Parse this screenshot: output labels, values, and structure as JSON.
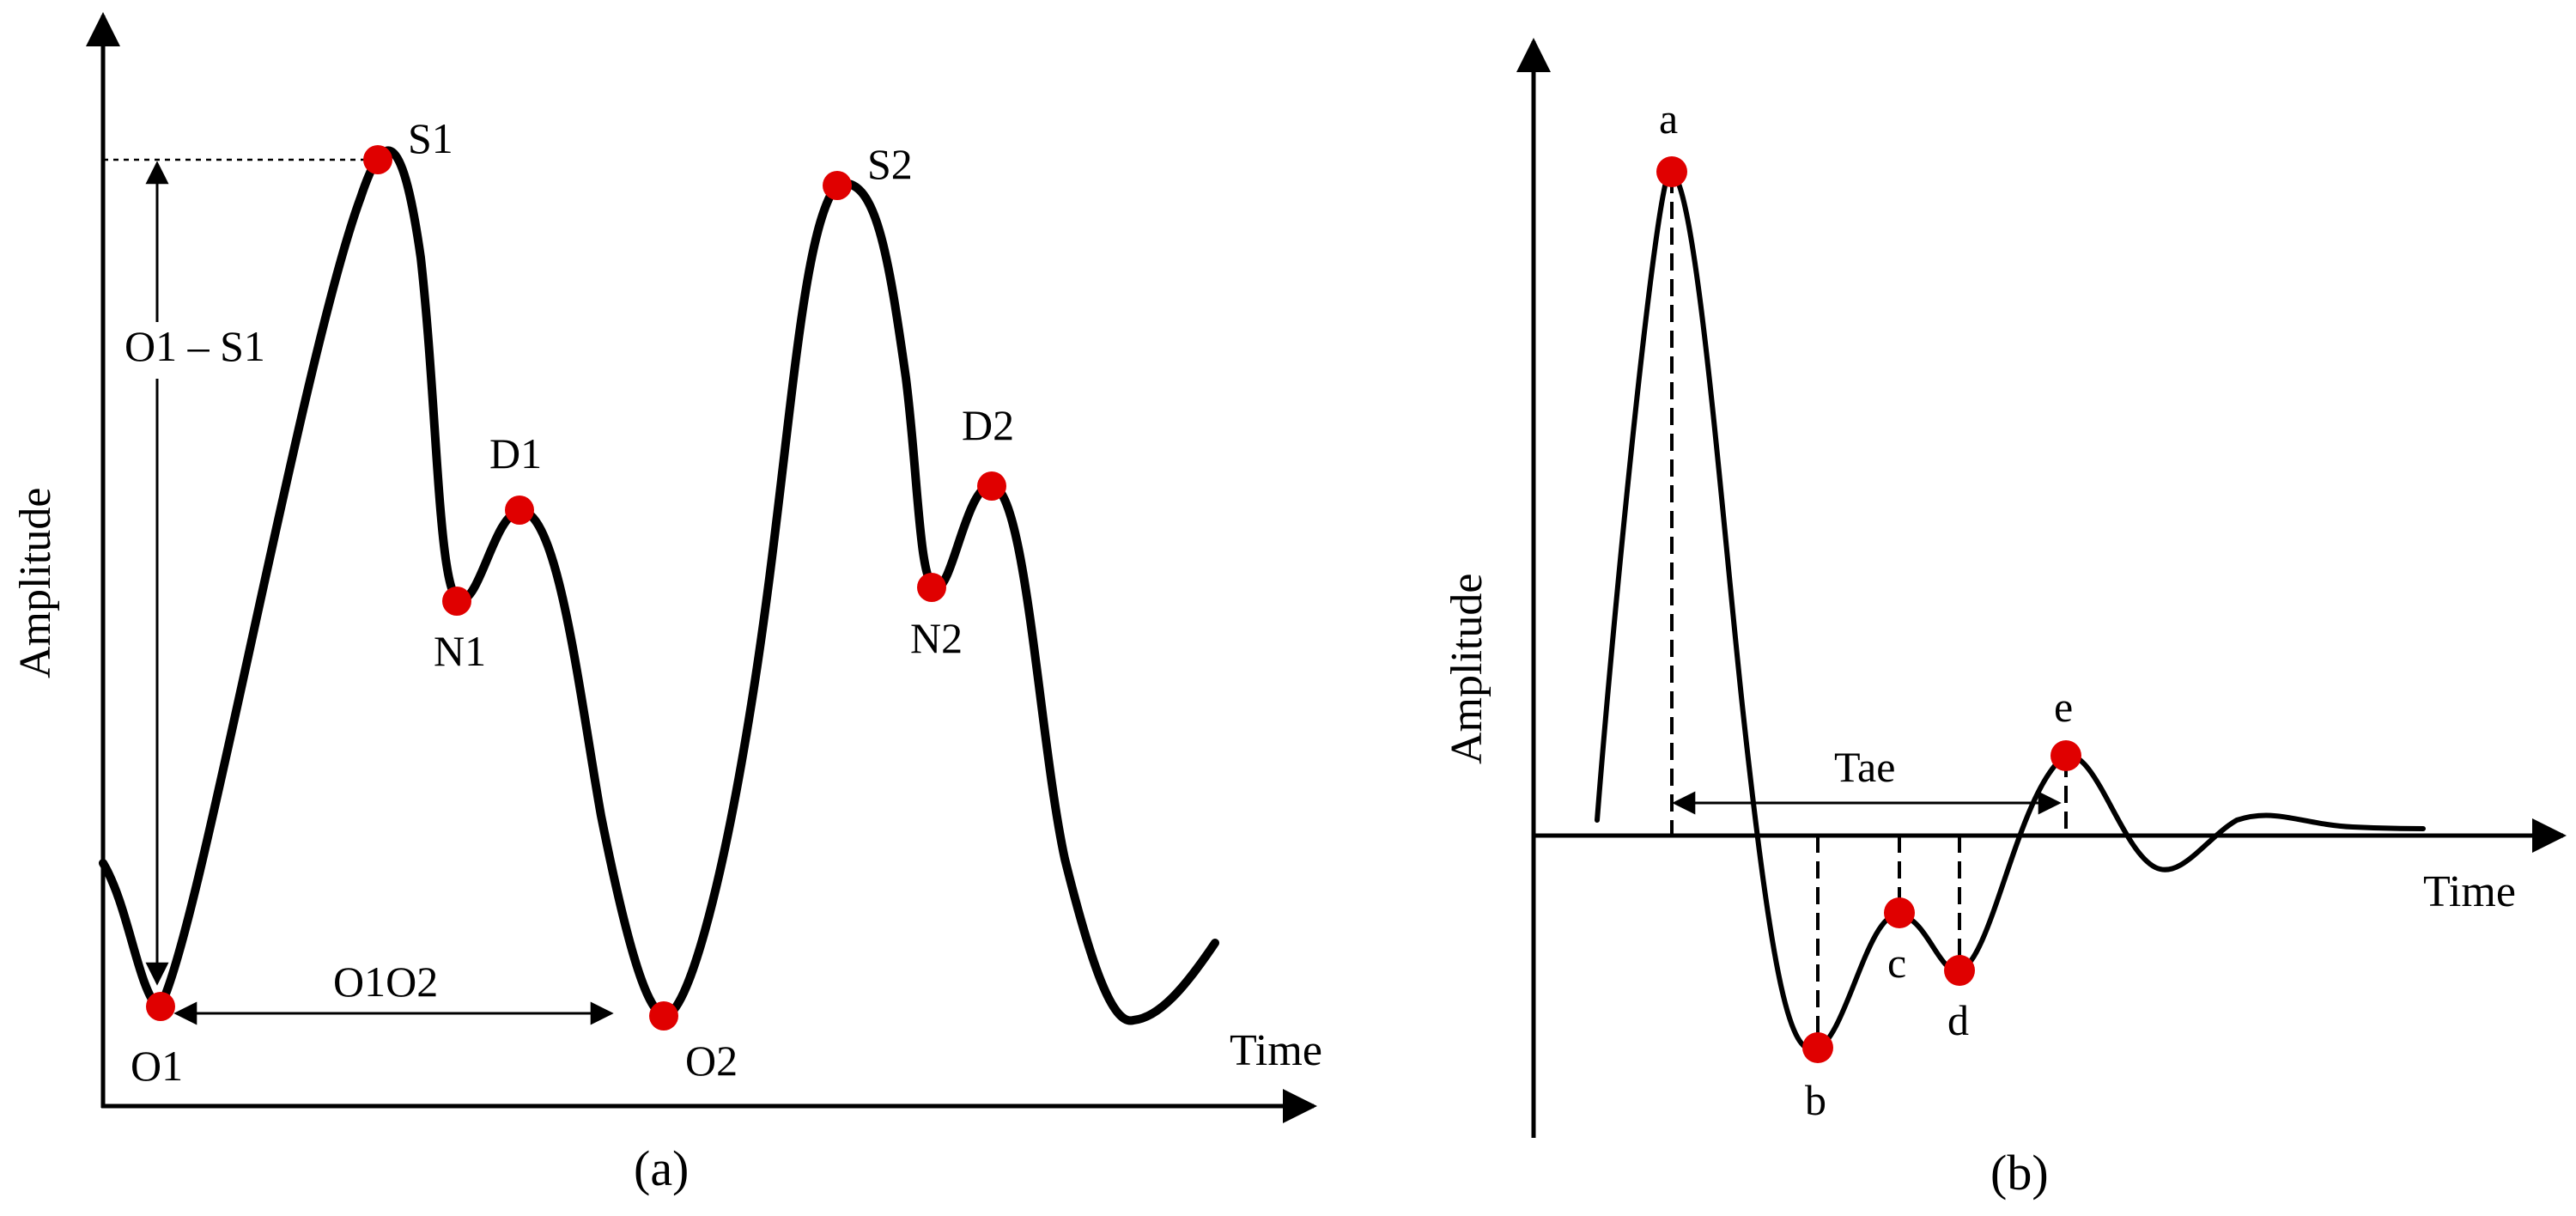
{
  "panel_a": {
    "caption": "(a)",
    "y_label": "Amplitude",
    "x_label": "Time",
    "points": {
      "S1": "S1",
      "N1": "N1",
      "D1": "D1",
      "O1": "O1",
      "S2": "S2",
      "N2": "N2",
      "D2": "D2",
      "O2": "O2"
    },
    "measure_vertical": "O1 – S1",
    "measure_horizontal": "O1O2"
  },
  "panel_b": {
    "caption": "(b)",
    "y_label": "Amplitude",
    "x_label": "Time",
    "points": {
      "a": "a",
      "b": "b",
      "c": "c",
      "d": "d",
      "e": "e"
    },
    "measure_horizontal": "Tae"
  },
  "colors": {
    "curve": "#000000",
    "point": "#e00000",
    "background": "#ffffff"
  }
}
